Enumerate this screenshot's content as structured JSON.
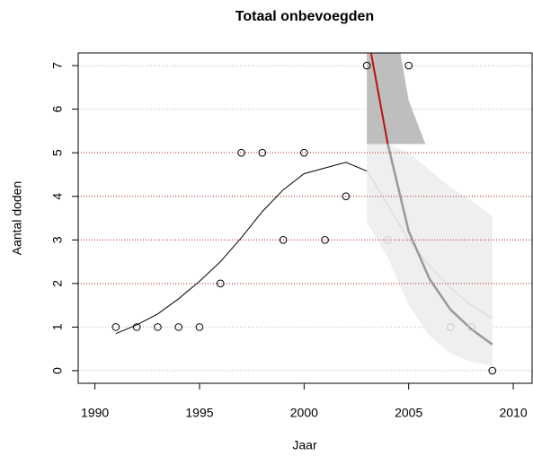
{
  "chart_data": {
    "type": "scatter",
    "title": "Totaal onbevoegden",
    "x_label": "Jaar",
    "y_label": "Aantal doden",
    "xlim": [
      1989.2,
      2010.9
    ],
    "ylim": [
      -0.29,
      7.29
    ],
    "xticks": [
      1990,
      1995,
      2000,
      2005,
      2010
    ],
    "yticks": [
      0,
      1,
      2,
      3,
      4,
      5,
      6,
      7
    ],
    "grid": true,
    "grid_color": "#bbbbbb",
    "highlight_lines": [
      2,
      3,
      4,
      5
    ],
    "highlight_color": "#cc2222",
    "series": [
      {
        "kind": "band",
        "color": "#efefef",
        "x": [
          2003,
          2004,
          2005,
          2006,
          2007,
          2008,
          2009
        ],
        "upper": [
          5.2,
          5.2,
          5.0,
          4.6,
          4.2,
          3.9,
          3.55
        ],
        "lower": [
          3.4,
          2.6,
          1.5,
          0.8,
          0.4,
          0.2,
          0.12
        ]
      },
      {
        "kind": "band",
        "color": "#bebebe",
        "x": [
          2003,
          2004.6,
          2005,
          2005.8
        ],
        "upper": [
          7.29,
          7.29,
          6.2,
          5.2
        ],
        "lower": [
          5.2,
          5.2,
          5.2,
          5.2
        ]
      },
      {
        "kind": "line",
        "color": "#000000",
        "width": 1,
        "x": [
          1991,
          1992,
          1993,
          1994,
          1995,
          1996,
          1997,
          1998,
          1999,
          2000,
          2001,
          2002,
          2003
        ],
        "values": [
          0.85,
          1.05,
          1.3,
          1.65,
          2.05,
          2.5,
          3.05,
          3.65,
          4.15,
          4.52,
          4.65,
          4.78,
          4.58
        ]
      },
      {
        "kind": "line",
        "color": "#d6d6d6",
        "width": 1,
        "x": [
          2003,
          2004,
          2005,
          2006,
          2007,
          2008,
          2009
        ],
        "values": [
          4.6,
          3.8,
          3.0,
          2.4,
          1.9,
          1.5,
          1.2
        ]
      },
      {
        "kind": "line",
        "color": "#bb1111",
        "width": 2,
        "x": [
          2003.2,
          2004
        ],
        "values": [
          7.29,
          5.2
        ]
      },
      {
        "kind": "line",
        "color": "#999999",
        "width": 2.5,
        "x": [
          2004,
          2005,
          2006,
          2007,
          2008,
          2009
        ],
        "values": [
          5.2,
          3.2,
          2.1,
          1.4,
          0.95,
          0.6
        ]
      },
      {
        "kind": "points",
        "color": "#000000",
        "x": [
          1991,
          1992,
          1993,
          1994,
          1995,
          1996,
          1997,
          1998,
          1999,
          2000,
          2001,
          2002,
          2003,
          2005,
          2009
        ],
        "values": [
          1,
          1,
          1,
          1,
          1,
          2,
          5,
          5,
          3,
          5,
          3,
          4,
          7,
          7,
          0
        ]
      },
      {
        "kind": "points",
        "color": "#cccccc",
        "x": [
          2004,
          2007,
          2008
        ],
        "values": [
          3,
          1,
          1
        ]
      }
    ]
  }
}
